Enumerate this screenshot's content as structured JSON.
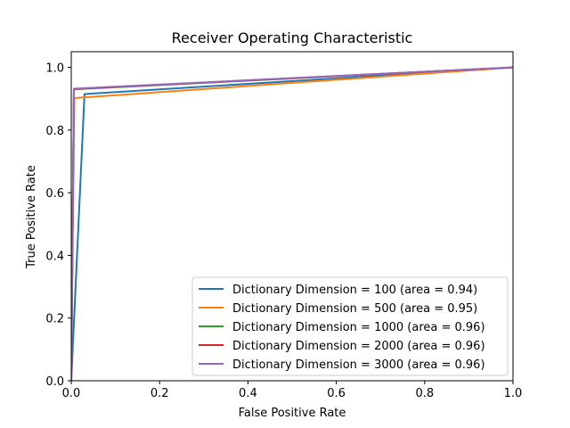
{
  "chart_data": {
    "type": "line",
    "title": "Receiver Operating Characteristic",
    "xlabel": "False Positive Rate",
    "ylabel": "True Positive Rate",
    "xlim": [
      0.0,
      1.0
    ],
    "ylim": [
      0.0,
      1.05
    ],
    "xticks": [
      0.0,
      0.2,
      0.4,
      0.6,
      0.8,
      1.0
    ],
    "yticks": [
      0.0,
      0.2,
      0.4,
      0.6,
      0.8,
      1.0
    ],
    "xtick_labels": [
      "0.0",
      "0.2",
      "0.4",
      "0.6",
      "0.8",
      "1.0"
    ],
    "ytick_labels": [
      "0.0",
      "0.2",
      "0.4",
      "0.6",
      "0.8",
      "1.0"
    ],
    "grid": false,
    "legend_position": "lower-right",
    "series": [
      {
        "name": "Dictionary Dimension = 100 (area = 0.94)",
        "color": "#1f77b4",
        "x": [
          0.0,
          0.03,
          1.0
        ],
        "y": [
          0.0,
          0.915,
          1.0
        ]
      },
      {
        "name": "Dictionary Dimension = 500 (area = 0.95)",
        "color": "#ff7f0e",
        "x": [
          0.0,
          0.007,
          1.0
        ],
        "y": [
          0.0,
          0.902,
          1.0
        ]
      },
      {
        "name": "Dictionary Dimension = 1000 (area = 0.96)",
        "color": "#2ca02c",
        "x": [
          0.0,
          0.006,
          1.0
        ],
        "y": [
          0.0,
          0.93,
          1.0
        ]
      },
      {
        "name": "Dictionary Dimension = 2000 (area = 0.96)",
        "color": "#d62728",
        "x": [
          0.0,
          0.006,
          1.0
        ],
        "y": [
          0.0,
          0.931,
          1.0
        ]
      },
      {
        "name": "Dictionary Dimension = 3000 (area = 0.96)",
        "color": "#9467bd",
        "x": [
          0.0,
          0.006,
          1.0
        ],
        "y": [
          0.0,
          0.932,
          1.0
        ]
      }
    ]
  }
}
